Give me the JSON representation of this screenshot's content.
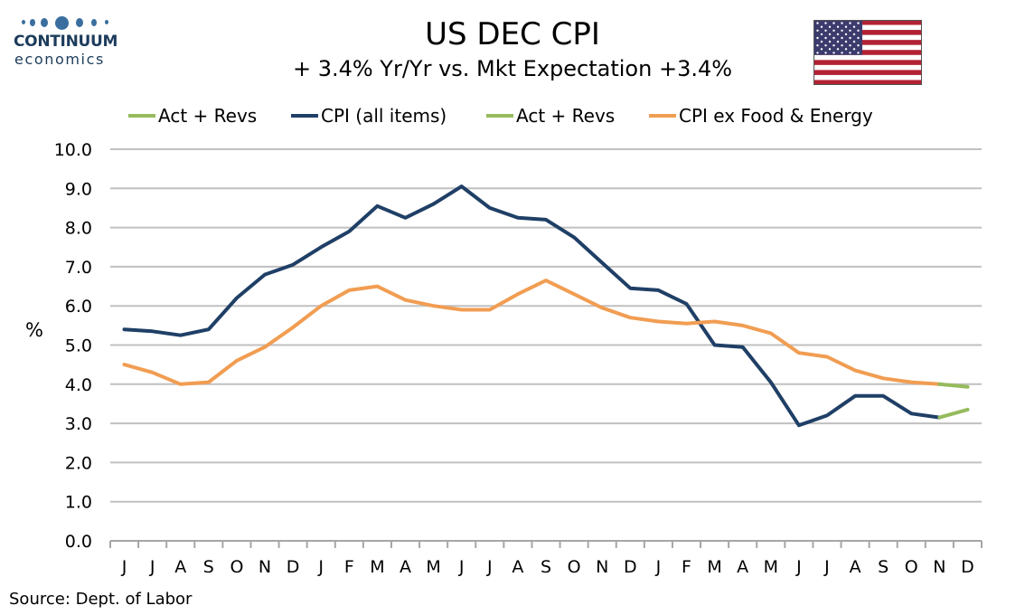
{
  "logo": {
    "brand": "CONTINUUM",
    "sub": "economics"
  },
  "source": "Source: Dept. of Labor",
  "colors": {
    "cpi": "#1f3f66",
    "core": "#f19d52",
    "revs": "#95bb5c",
    "grid": "#c0c0c0",
    "axis": "#a6a6a6"
  },
  "chart_data": {
    "type": "line",
    "title": "US DEC CPI",
    "subtitle": "+ 3.4% Yr/Yr  vs. Mkt Expectation +3.4%",
    "ylabel": "%",
    "ylim": [
      0,
      10
    ],
    "yticks": [
      "0.0",
      "1.0",
      "2.0",
      "3.0",
      "4.0",
      "5.0",
      "6.0",
      "7.0",
      "8.0",
      "9.0",
      "10.0"
    ],
    "grid": true,
    "legend_position": "top",
    "legend": [
      {
        "name": "Act + Revs",
        "key": "revs"
      },
      {
        "name": "CPI (all items)",
        "key": "cpi"
      },
      {
        "name": "Act + Revs",
        "key": "revs"
      },
      {
        "name": "CPI ex Food & Energy",
        "key": "core"
      }
    ],
    "categories": [
      "J",
      "J",
      "A",
      "S",
      "O",
      "N",
      "D",
      "J",
      "F",
      "M",
      "A",
      "M",
      "J",
      "J",
      "A",
      "S",
      "O",
      "N",
      "D",
      "J",
      "F",
      "M",
      "A",
      "M",
      "J",
      "J",
      "A",
      "S",
      "O",
      "N",
      "D"
    ],
    "series": [
      {
        "name": "CPI (all items)",
        "key": "cpi",
        "values": [
          5.4,
          5.35,
          5.25,
          5.4,
          6.2,
          6.8,
          7.05,
          7.5,
          7.9,
          8.55,
          8.25,
          8.6,
          9.05,
          8.5,
          8.25,
          8.2,
          7.75,
          7.1,
          6.45,
          6.4,
          6.05,
          5.0,
          4.95,
          4.05,
          2.95,
          3.2,
          3.7,
          3.7,
          3.25,
          3.15,
          null
        ]
      },
      {
        "name": "Act + Revs",
        "key": "revs",
        "overlay": "cpi",
        "values": [
          null,
          null,
          null,
          null,
          null,
          null,
          null,
          null,
          null,
          null,
          null,
          null,
          null,
          null,
          null,
          null,
          null,
          null,
          null,
          null,
          null,
          null,
          null,
          null,
          null,
          null,
          null,
          null,
          null,
          3.15,
          3.35
        ]
      },
      {
        "name": "CPI ex Food & Energy",
        "key": "core",
        "values": [
          4.5,
          4.3,
          4.0,
          4.05,
          4.6,
          4.95,
          5.45,
          6.0,
          6.4,
          6.5,
          6.15,
          6.0,
          5.9,
          5.9,
          6.3,
          6.65,
          6.3,
          5.95,
          5.7,
          5.6,
          5.55,
          5.6,
          5.5,
          5.3,
          4.8,
          4.7,
          4.35,
          4.15,
          4.05,
          4.0,
          null
        ]
      },
      {
        "name": "Act + Revs",
        "key": "revs",
        "overlay": "core",
        "values": [
          null,
          null,
          null,
          null,
          null,
          null,
          null,
          null,
          null,
          null,
          null,
          null,
          null,
          null,
          null,
          null,
          null,
          null,
          null,
          null,
          null,
          null,
          null,
          null,
          null,
          null,
          null,
          null,
          null,
          4.0,
          3.93
        ]
      }
    ]
  }
}
